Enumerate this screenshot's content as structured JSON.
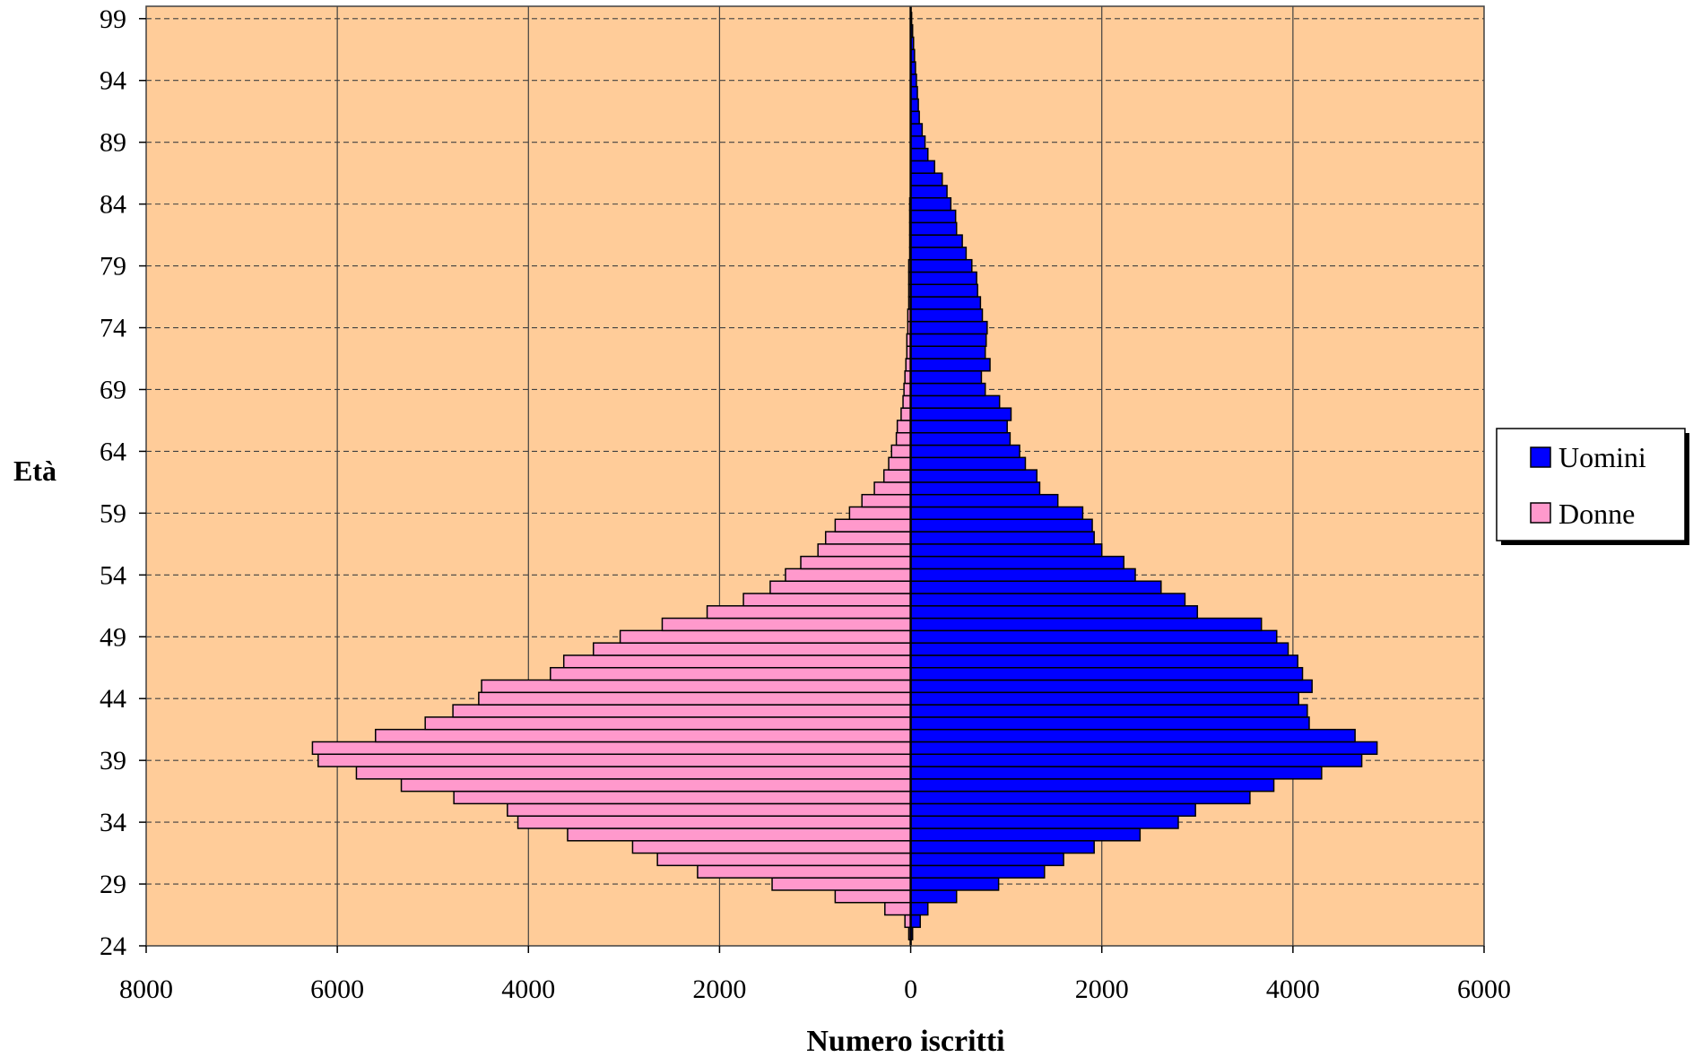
{
  "chart_data": {
    "type": "bar",
    "orientation": "horizontal",
    "layout": "population-pyramid",
    "xlabel": "Numero iscritti",
    "ylabel": "Età",
    "x_ticks": [
      "8000",
      "6000",
      "4000",
      "2000",
      "0",
      "2000",
      "4000",
      "6000"
    ],
    "xlim": [
      -8000,
      6000
    ],
    "y_ticks": [
      "24",
      "29",
      "34",
      "39",
      "44",
      "49",
      "54",
      "59",
      "64",
      "69",
      "74",
      "79",
      "84",
      "89",
      "94",
      "99"
    ],
    "ylim": [
      24,
      100
    ],
    "grid": {
      "vertical_solid": true,
      "horizontal_dashed": true
    },
    "legend_position": "right",
    "colors": {
      "plot_background": "#FFCC99",
      "uomini": "#0000FF",
      "donne": "#FF99CC",
      "outline": "#000000",
      "legend_shadow": "#000000"
    },
    "categories": [
      25,
      26,
      27,
      28,
      29,
      30,
      31,
      32,
      33,
      34,
      35,
      36,
      37,
      38,
      39,
      40,
      41,
      42,
      43,
      44,
      45,
      46,
      47,
      48,
      49,
      50,
      51,
      52,
      53,
      54,
      55,
      56,
      57,
      58,
      59,
      60,
      61,
      62,
      63,
      64,
      65,
      66,
      67,
      68,
      69,
      70,
      71,
      72,
      73,
      74,
      75,
      76,
      77,
      78,
      79,
      80,
      81,
      82,
      83,
      84,
      85,
      86,
      87,
      88,
      89,
      90,
      91,
      92,
      93,
      94,
      95,
      96,
      97,
      98,
      99
    ],
    "series": [
      {
        "name": "Uomini",
        "color": "#0000FF",
        "values": [
          20,
          100,
          180,
          480,
          920,
          1400,
          1600,
          1920,
          2400,
          2800,
          2980,
          3550,
          3800,
          4300,
          4720,
          4880,
          4650,
          4170,
          4150,
          4060,
          4200,
          4100,
          4050,
          3950,
          3830,
          3670,
          3000,
          2870,
          2620,
          2350,
          2230,
          2000,
          1920,
          1900,
          1800,
          1540,
          1350,
          1320,
          1200,
          1140,
          1040,
          1010,
          1050,
          930,
          780,
          740,
          830,
          780,
          790,
          800,
          750,
          730,
          700,
          690,
          640,
          580,
          540,
          480,
          470,
          420,
          380,
          330,
          250,
          180,
          150,
          120,
          90,
          80,
          70,
          60,
          50,
          40,
          30,
          20,
          10
        ]
      },
      {
        "name": "Donne",
        "color": "#FF99CC",
        "values": [
          20,
          60,
          270,
          790,
          1450,
          2230,
          2650,
          2910,
          3590,
          4110,
          4220,
          4780,
          5330,
          5800,
          6200,
          6260,
          5600,
          5080,
          4790,
          4520,
          4490,
          3770,
          3630,
          3320,
          3040,
          2600,
          2130,
          1750,
          1470,
          1310,
          1150,
          970,
          890,
          790,
          640,
          510,
          380,
          280,
          230,
          200,
          150,
          140,
          100,
          80,
          70,
          60,
          50,
          40,
          40,
          30,
          30,
          20,
          20,
          20,
          20,
          10,
          10,
          10,
          10,
          10,
          0,
          0,
          0,
          0,
          0,
          0,
          0,
          0,
          0,
          0,
          0,
          0,
          0,
          0,
          0
        ]
      }
    ]
  }
}
